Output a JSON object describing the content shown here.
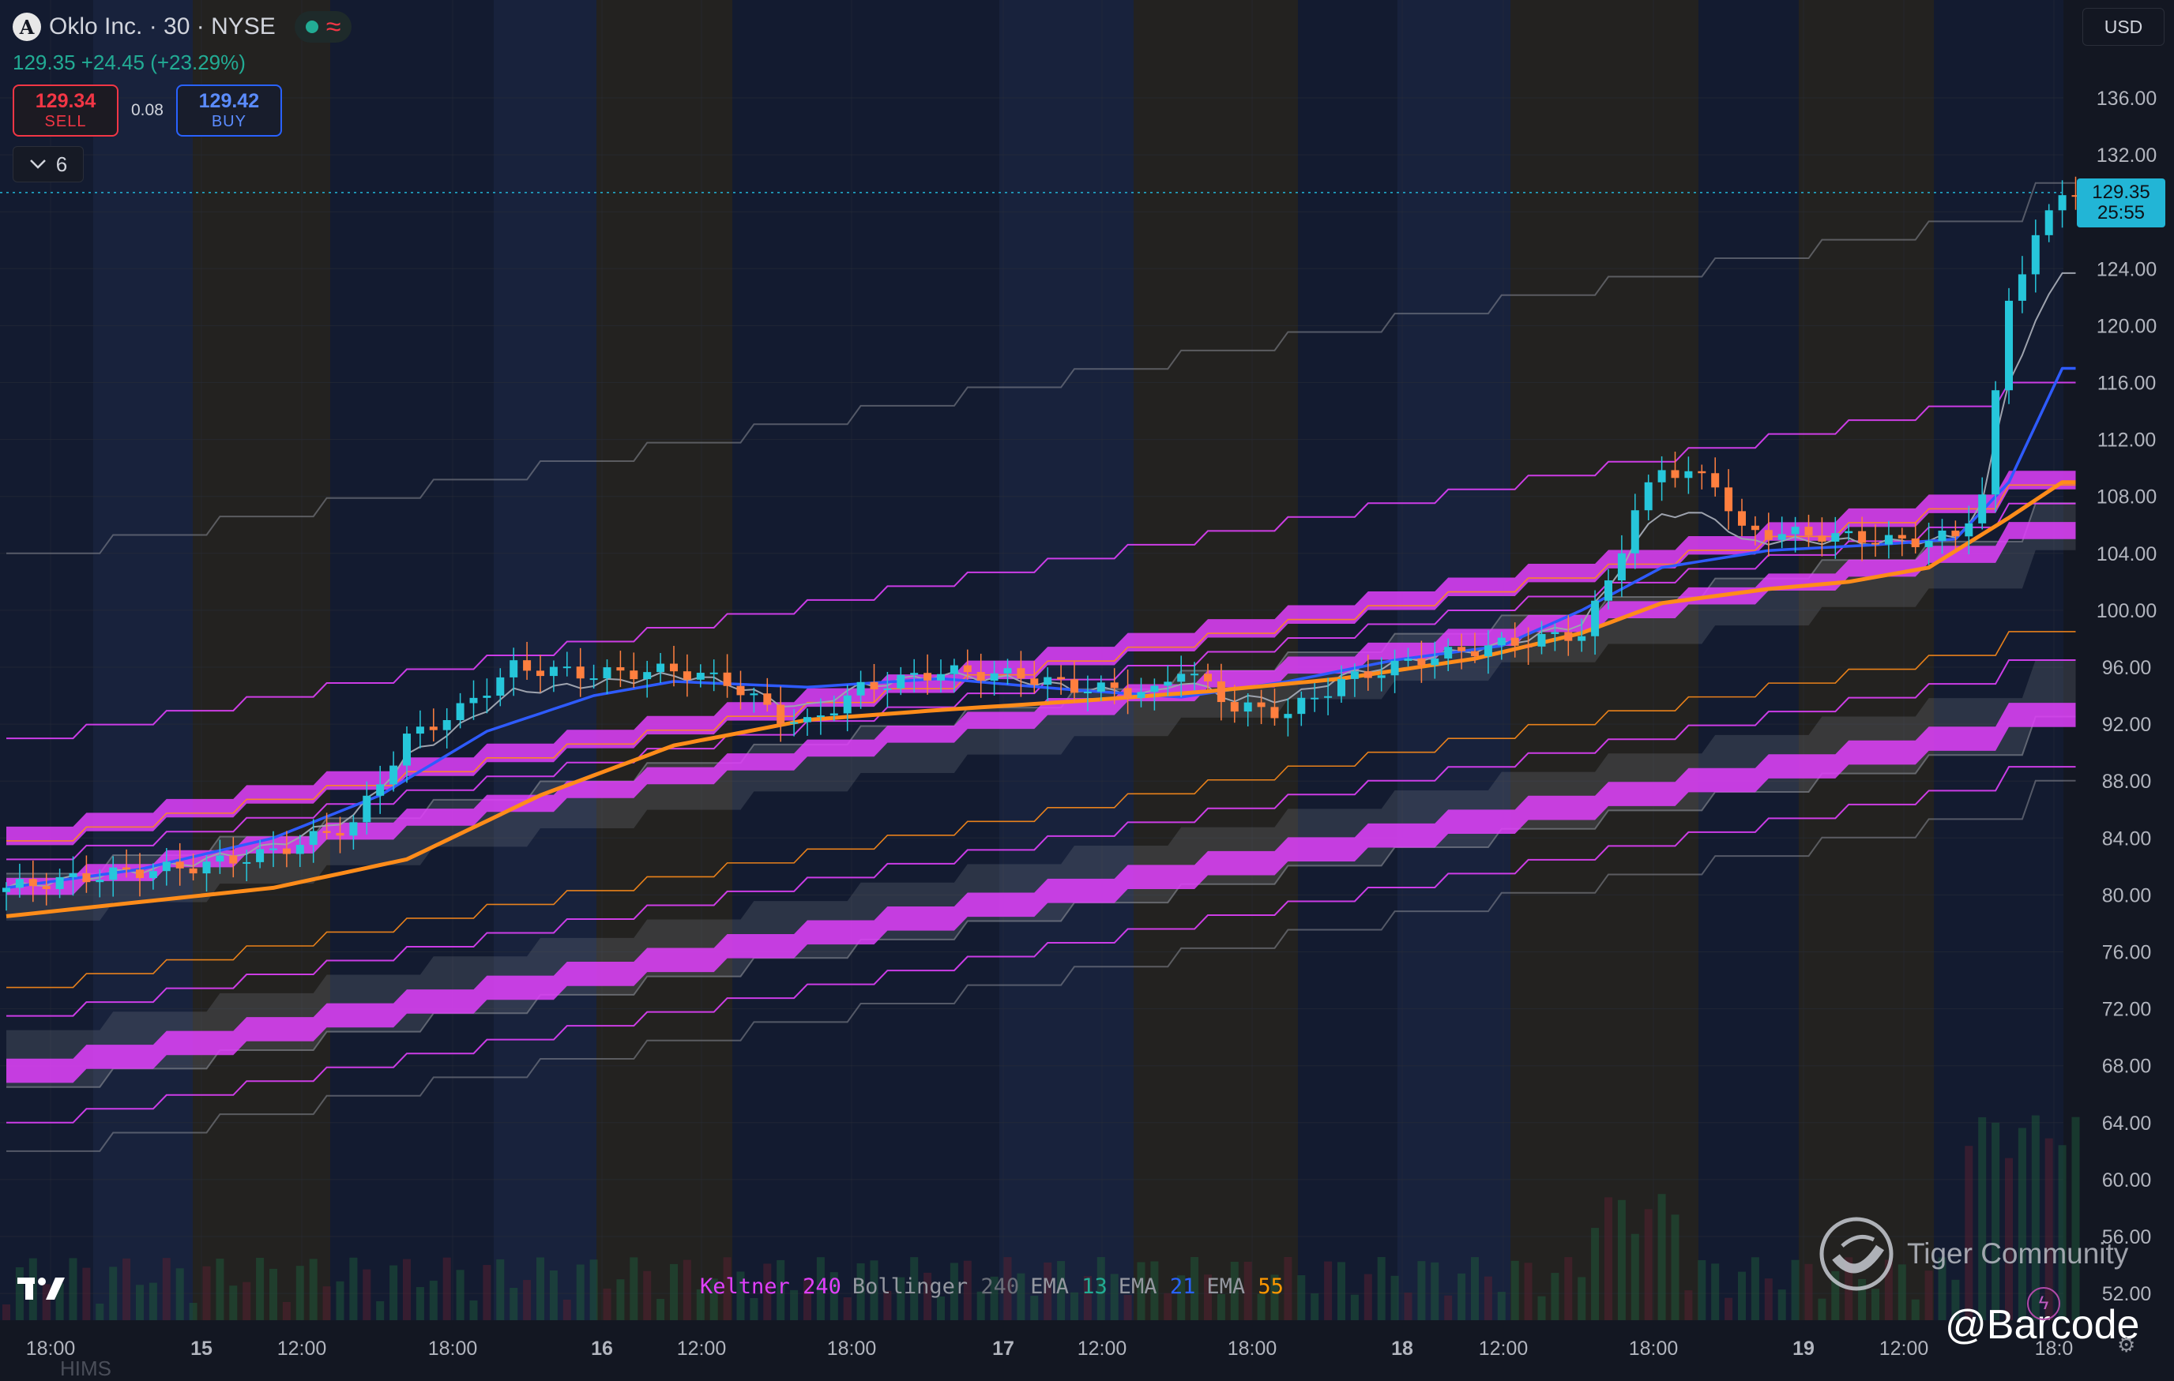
{
  "header": {
    "symbol_initial": "A",
    "symbol_title": "Oklo Inc. · 30 · NYSE",
    "status_wave": "≈",
    "change_text": "129.35 +24.45 (+23.29%)",
    "sell": {
      "price": "129.34",
      "label": "SELL"
    },
    "buy": {
      "price": "129.42",
      "label": "BUY"
    },
    "spread": "0.08",
    "indicator_count": "6",
    "currency": "USD"
  },
  "price_tag": {
    "price": "129.35",
    "countdown": "25:55"
  },
  "legend": {
    "keltner": {
      "name": "Keltner",
      "value": "240"
    },
    "bollinger": {
      "name": "Bollinger",
      "value": "240"
    },
    "ema13": {
      "name": "EMA",
      "value": "13"
    },
    "ema21": {
      "name": "EMA",
      "value": "21"
    },
    "ema55": {
      "name": "EMA",
      "value": "55"
    }
  },
  "watermark": {
    "text": "Tiger Community",
    "handle": "@Barcode"
  },
  "ghost_text": "HIMS",
  "colors": {
    "background": "#131722",
    "up_candle": "#26c6da",
    "down_candle": "#ff7f3f",
    "keltner": "#e040fb",
    "bollinger": "#8a8d96",
    "ema13": "#9ea3ae",
    "ema21": "#2e5bff",
    "ema55": "#ff8c1a",
    "last_price": "#22b5d6"
  },
  "chart_data": {
    "type": "candlestick",
    "title": "Oklo Inc. · 30 · NYSE",
    "y_axis": {
      "ticks": [
        "136.00",
        "132.00",
        "128.00",
        "124.00",
        "120.00",
        "116.00",
        "112.00",
        "108.00",
        "104.00",
        "100.00",
        "96.00",
        "92.00",
        "88.00",
        "84.00",
        "80.00",
        "76.00",
        "72.00",
        "68.00",
        "64.00",
        "60.00",
        "56.00",
        "52.00"
      ],
      "range": [
        50.5,
        137.4
      ]
    },
    "x_axis": {
      "ticks": [
        "18:00",
        "15",
        "12:00",
        "18:00",
        "16",
        "12:00",
        "18:00",
        "17",
        "12:00",
        "18:00",
        "18",
        "12:00",
        "18:00",
        "19",
        "12:00",
        "18:0"
      ]
    },
    "last_price": 129.35,
    "ema21_approx": [
      [
        0,
        80.5
      ],
      [
        10,
        81.8
      ],
      [
        20,
        84
      ],
      [
        28,
        87
      ],
      [
        36,
        91.5
      ],
      [
        44,
        94
      ],
      [
        50,
        95
      ],
      [
        60,
        94.6
      ],
      [
        70,
        95.2
      ],
      [
        80,
        94.4
      ],
      [
        88,
        93.9
      ],
      [
        96,
        95
      ],
      [
        104,
        96.5
      ],
      [
        112,
        97.5
      ],
      [
        118,
        100
      ],
      [
        124,
        103
      ],
      [
        132,
        104.2
      ],
      [
        140,
        104.6
      ],
      [
        146,
        105
      ],
      [
        150,
        109
      ],
      [
        154,
        117
      ]
    ],
    "ema55_approx": [
      [
        0,
        78.5
      ],
      [
        20,
        80.5
      ],
      [
        30,
        82.5
      ],
      [
        40,
        87
      ],
      [
        50,
        90.5
      ],
      [
        60,
        92.3
      ],
      [
        70,
        93
      ],
      [
        80,
        93.6
      ],
      [
        90,
        94.3
      ],
      [
        100,
        95.2
      ],
      [
        110,
        96.6
      ],
      [
        118,
        98.4
      ],
      [
        124,
        100.5
      ],
      [
        132,
        101.5
      ],
      [
        138,
        102
      ],
      [
        144,
        103
      ],
      [
        150,
        106.5
      ],
      [
        154,
        109
      ]
    ]
  }
}
